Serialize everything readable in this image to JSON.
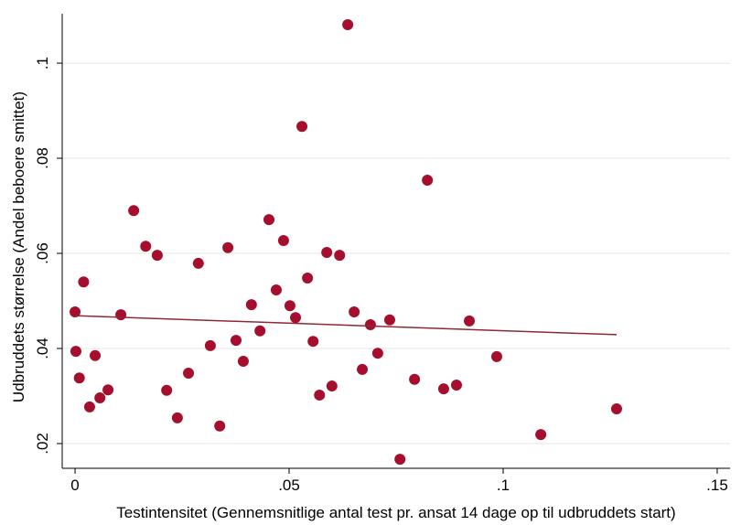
{
  "chart_data": {
    "type": "scatter",
    "x_label": "Testintensitet (Gennemsnitlige antal test pr. ansat 14 dage op til udbruddets start)",
    "y_label": "Udbruddets størrelse (Andel beboere smittet)",
    "x": [
      0,
      0.0002,
      0.001,
      0.002,
      0.0034,
      0.0047,
      0.0058,
      0.0077,
      0.0107,
      0.0137,
      0.0165,
      0.0192,
      0.0214,
      0.0239,
      0.0265,
      0.0288,
      0.0316,
      0.0338,
      0.0357,
      0.0376,
      0.0393,
      0.0412,
      0.0432,
      0.0453,
      0.047,
      0.0487,
      0.0502,
      0.0515,
      0.053,
      0.0543,
      0.0556,
      0.0571,
      0.0588,
      0.06,
      0.0618,
      0.0637,
      0.0652,
      0.0671,
      0.069,
      0.0707,
      0.0735,
      0.0759,
      0.0793,
      0.0823,
      0.0861,
      0.0891,
      0.0921,
      0.0985,
      0.1088,
      0.1265
    ],
    "y": [
      0.0477,
      0.0394,
      0.0338,
      0.054,
      0.0277,
      0.0385,
      0.0296,
      0.0313,
      0.0471,
      0.069,
      0.0615,
      0.0596,
      0.0312,
      0.0254,
      0.0348,
      0.0579,
      0.0406,
      0.0237,
      0.0612,
      0.0417,
      0.0373,
      0.0492,
      0.0437,
      0.0671,
      0.0523,
      0.0627,
      0.049,
      0.0465,
      0.0867,
      0.0548,
      0.0415,
      0.0302,
      0.0602,
      0.0321,
      0.0596,
      0.1081,
      0.0477,
      0.0356,
      0.045,
      0.039,
      0.046,
      0.0167,
      0.0335,
      0.0754,
      0.0315,
      0.0323,
      0.0458,
      0.0383,
      0.0219,
      0.0273
    ],
    "color": "#a50f2d",
    "fit_line": {
      "x": [
        0,
        0.1265
      ],
      "y": [
        0.0469,
        0.0429
      ],
      "color": "#8b2a35"
    },
    "xlim": [
      -0.003,
      0.153
    ],
    "ylim": [
      0.0148,
      0.1104
    ],
    "xticks": [
      0,
      {
        "value": 0.05,
        "label": ".05"
      },
      {
        "value": 0.1,
        "label": ".1"
      },
      {
        "value": 0.15,
        "label": ".15"
      }
    ],
    "yticks": [
      {
        "value": 0.02,
        "label": ".02"
      },
      {
        "value": 0.04,
        "label": ".04"
      },
      {
        "value": 0.06,
        "label": ".06"
      },
      {
        "value": 0.08,
        "label": ".08"
      },
      {
        "value": 0.1,
        "label": ".1"
      }
    ],
    "grid": true
  }
}
